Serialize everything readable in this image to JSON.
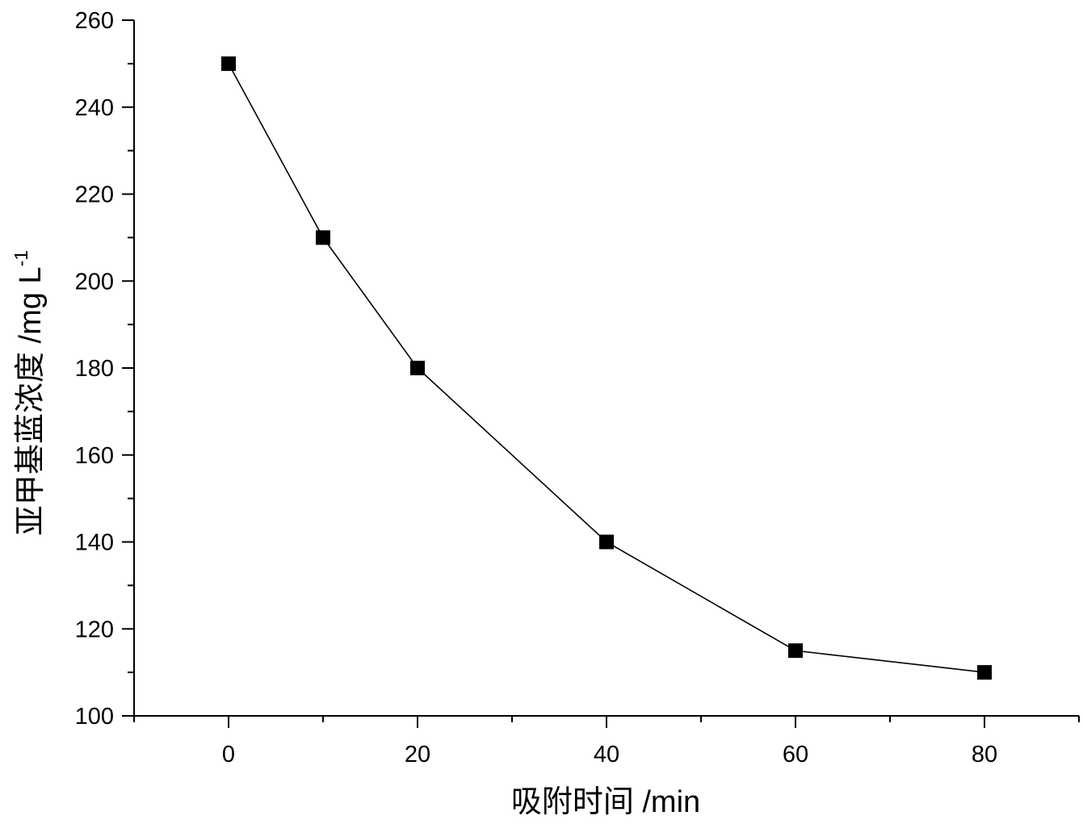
{
  "chart_data": {
    "type": "line",
    "x": [
      0,
      10,
      20,
      40,
      60,
      80
    ],
    "series": [
      {
        "values": [
          250,
          210,
          180,
          140,
          115,
          110
        ],
        "marker": "square",
        "color": "#000000"
      }
    ],
    "xlabel": "吸附时间 /min",
    "ylabel": "亚甲基蓝浓度 /mg L",
    "ylabel_superscript": "-1",
    "xlim": [
      -10,
      90
    ],
    "ylim": [
      100,
      260
    ],
    "xticks": [
      0,
      20,
      40,
      60,
      80
    ],
    "yticks": [
      100,
      120,
      140,
      160,
      180,
      200,
      220,
      240,
      260
    ],
    "grid": false,
    "legend": "none"
  }
}
